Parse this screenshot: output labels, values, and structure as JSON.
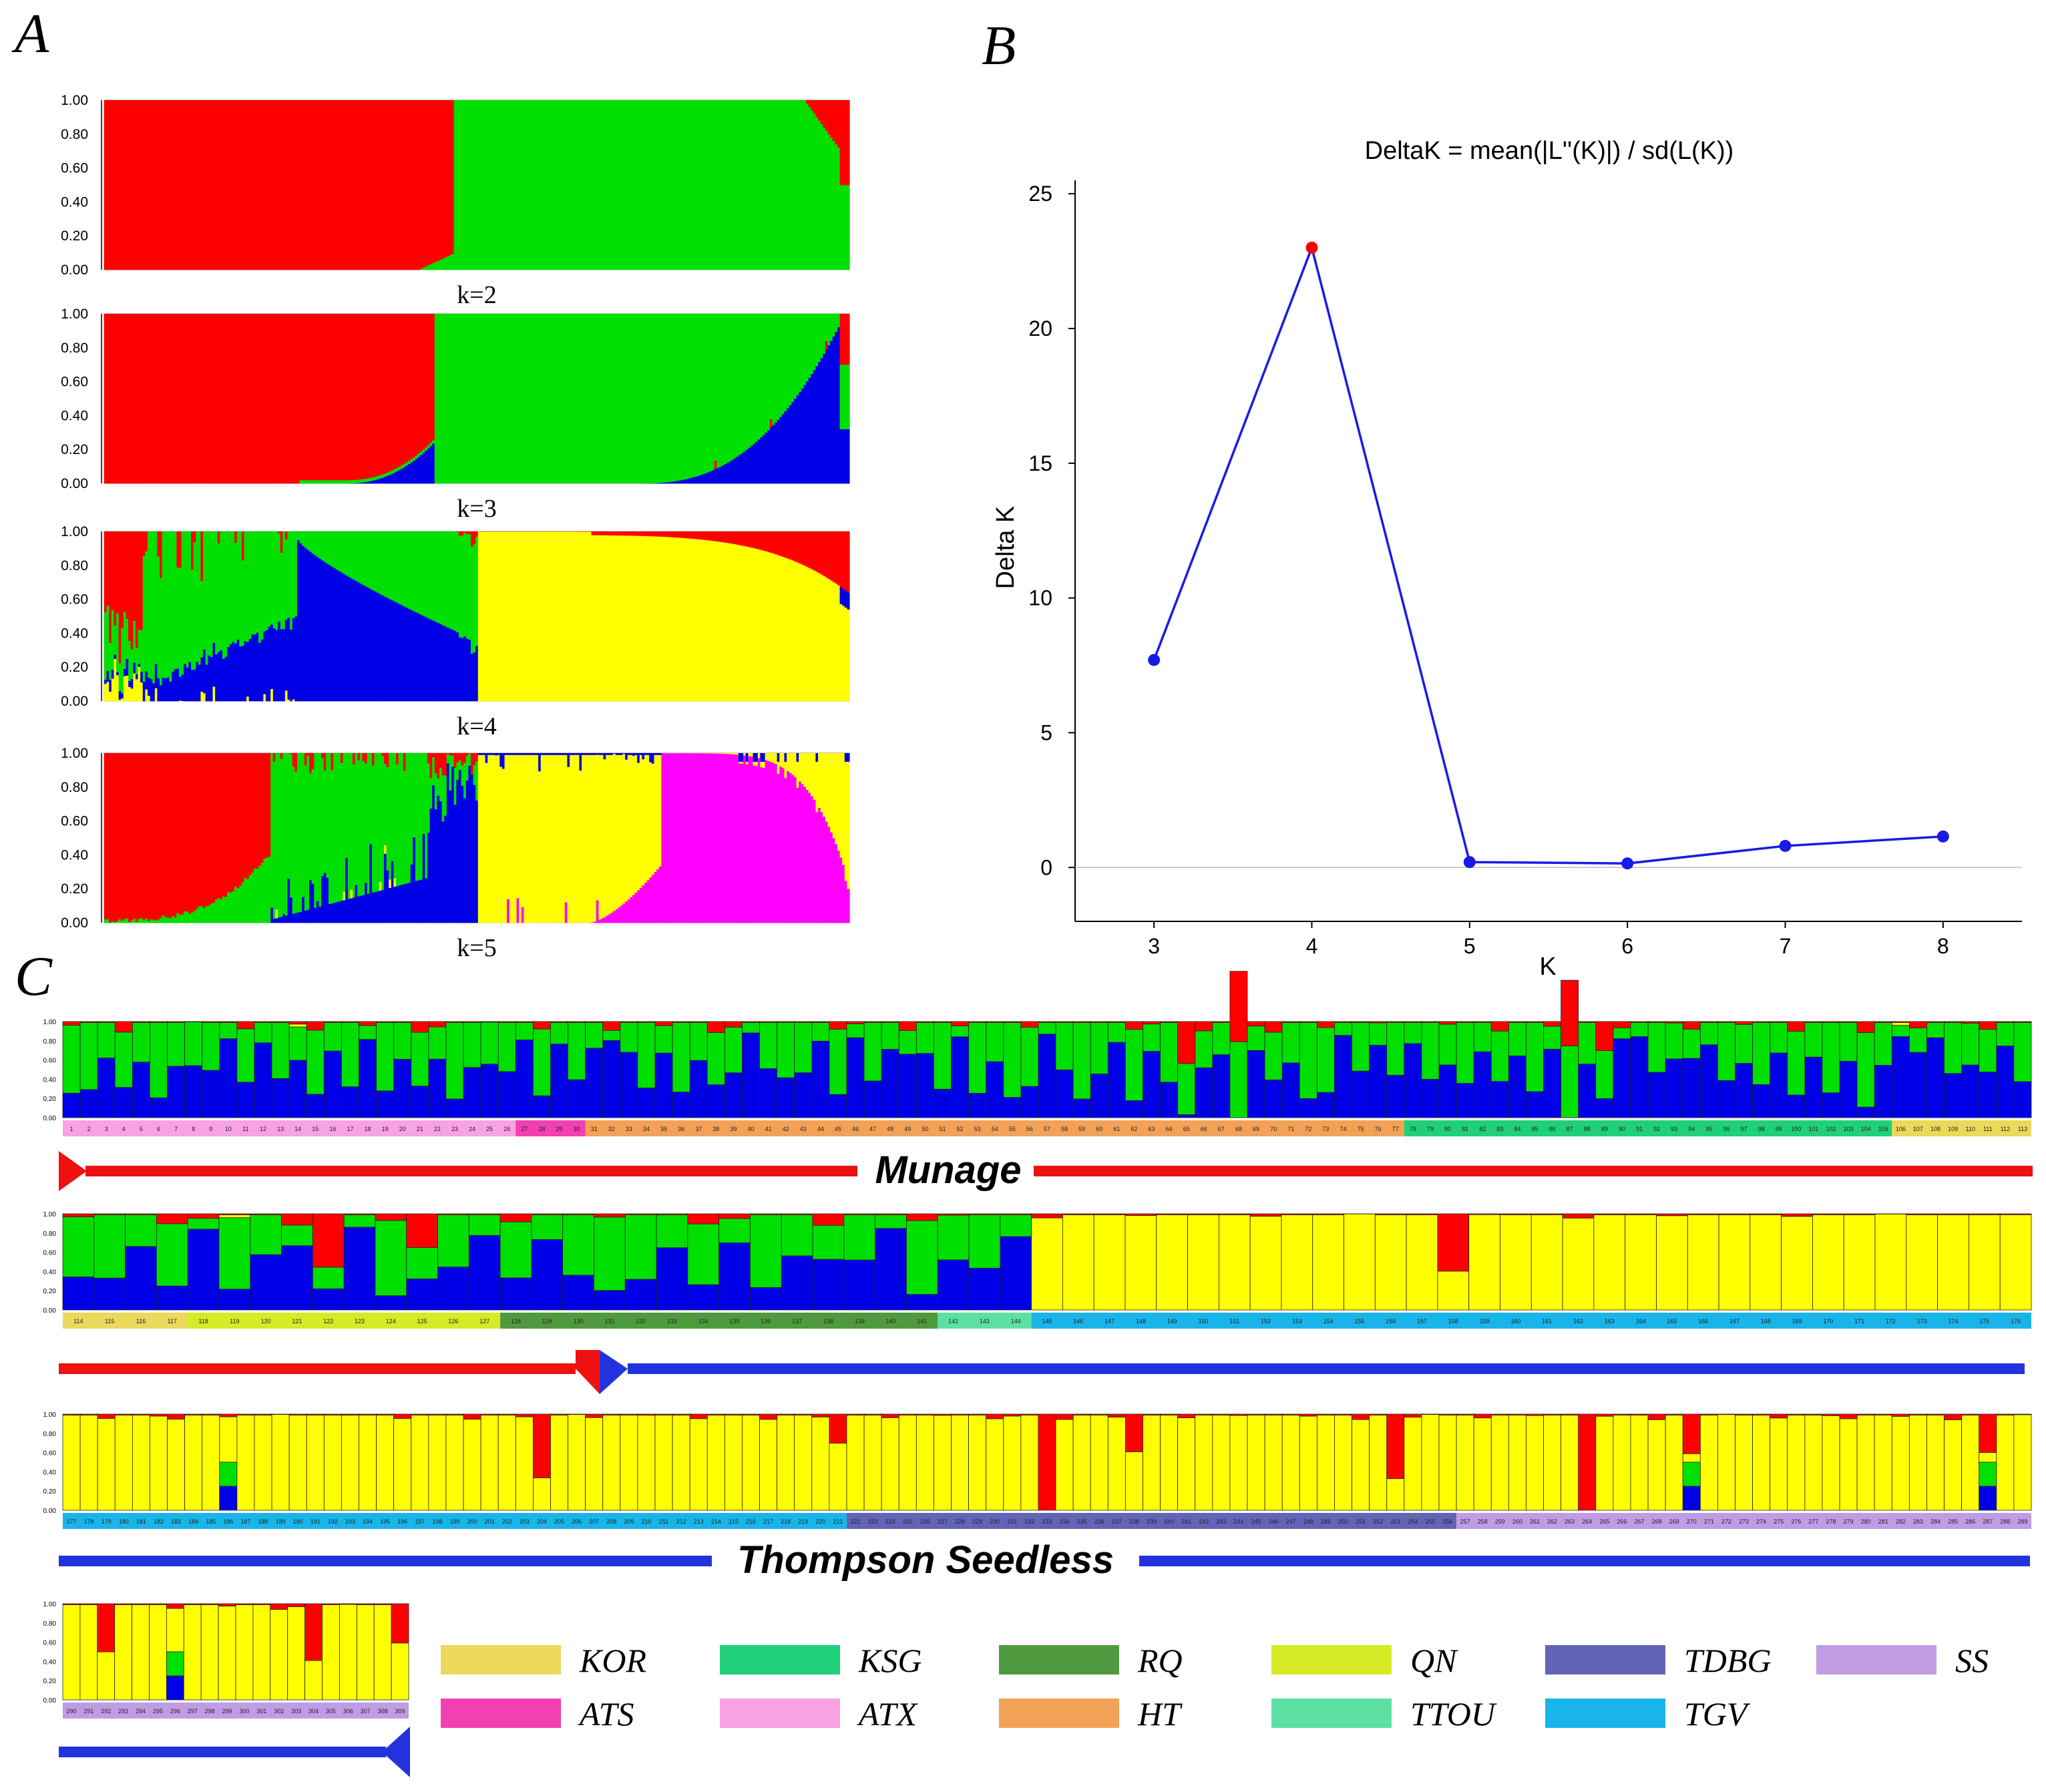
{
  "colors": {
    "red": "#ff0000",
    "green": "#00e000",
    "blue": "#0000e6",
    "yellow": "#ffff00",
    "magenta": "#ff00ff",
    "line": "#1a1ae6",
    "arrow_red": "#ee1111",
    "arrow_blue": "#2233dd"
  },
  "panel_labels": {
    "a": "A",
    "b": "B",
    "c": "C"
  },
  "chart_data": [
    {
      "id": "A",
      "type": "stacked-bar",
      "title": "",
      "y_ticks": [
        "0.00",
        "0.20",
        "0.40",
        "0.60",
        "0.80",
        "1.00"
      ],
      "ylim": [
        0,
        1
      ],
      "n_samples": 309,
      "plots": [
        {
          "k_label": "k=2",
          "segments": [
            {
              "cluster": "red",
              "from": 0,
              "to": 145
            },
            {
              "cluster": "green",
              "from": 145,
              "to": 305
            },
            {
              "cluster": "red",
              "from": 305,
              "to": 309
            }
          ]
        },
        {
          "k_label": "k=3",
          "segments": [
            {
              "cluster": "red",
              "from": 0,
              "to": 137
            },
            {
              "cluster": "green",
              "from": 137,
              "to": 285
            },
            {
              "cluster": "blue",
              "from": 285,
              "to": 305
            },
            {
              "cluster": "red",
              "from": 305,
              "to": 309
            }
          ]
        },
        {
          "k_label": "k=4",
          "segments": [
            {
              "cluster": "red",
              "from": 0,
              "to": 16
            },
            {
              "cluster": "green",
              "from": 16,
              "to": 80
            },
            {
              "cluster": "blue",
              "from": 80,
              "to": 155
            },
            {
              "cluster": "yellow",
              "from": 155,
              "to": 309
            }
          ]
        },
        {
          "k_label": "k=5",
          "segments": [
            {
              "cluster": "red",
              "from": 0,
              "to": 69
            },
            {
              "cluster": "green",
              "from": 69,
              "to": 135
            },
            {
              "cluster": "blue",
              "from": 135,
              "to": 155
            },
            {
              "cluster": "yellow",
              "from": 155,
              "to": 231
            },
            {
              "cluster": "magenta",
              "from": 231,
              "to": 309
            }
          ]
        }
      ]
    },
    {
      "id": "B",
      "type": "line",
      "title": "DeltaK = mean(|L''(K)|) / sd(L(K))",
      "xlabel": "K",
      "ylabel": "Delta K",
      "x": [
        3,
        4,
        5,
        6,
        7,
        8
      ],
      "y": [
        7.7,
        23.0,
        0.2,
        0.15,
        0.8,
        1.15
      ],
      "highlight_x": 4,
      "x_ticks": [
        "3",
        "4",
        "5",
        "6",
        "7",
        "8"
      ],
      "y_ticks": [
        "0",
        "5",
        "10",
        "15",
        "20",
        "25"
      ],
      "xlim": [
        2.5,
        8.5
      ],
      "ylim": [
        -2,
        25.5
      ]
    },
    {
      "id": "C",
      "type": "stacked-bar",
      "k": 4,
      "y_ticks": [
        "0.00",
        "0.20",
        "0.40",
        "0.60",
        "0.80",
        "1.00"
      ],
      "rows": [
        {
          "from": 1,
          "to": 113,
          "segments": [
            {
              "cluster": "blue",
              "from": 1,
              "to": 113
            }
          ],
          "groups": [
            {
              "name": "ATX",
              "from": 1,
              "to": 26
            },
            {
              "name": "ATS",
              "from": 27,
              "to": 30
            },
            {
              "name": "HT",
              "from": 31,
              "to": 77
            },
            {
              "name": "KSG",
              "from": 78,
              "to": 105
            },
            {
              "name": "KOR",
              "from": 106,
              "to": 113
            }
          ]
        },
        {
          "from": 114,
          "to": 176,
          "segments": [
            {
              "cluster": "blue",
              "from": 114,
              "to": 144
            },
            {
              "cluster": "yellow",
              "from": 145,
              "to": 176
            }
          ],
          "groups": [
            {
              "name": "KOR",
              "from": 114,
              "to": 117
            },
            {
              "name": "QN",
              "from": 118,
              "to": 127
            },
            {
              "name": "RQ",
              "from": 128,
              "to": 141
            },
            {
              "name": "TTOU",
              "from": 142,
              "to": 144
            },
            {
              "name": "TGV",
              "from": 145,
              "to": 176
            }
          ]
        },
        {
          "from": 177,
          "to": 289,
          "segments": [
            {
              "cluster": "yellow",
              "from": 177,
              "to": 289
            }
          ],
          "groups": [
            {
              "name": "TGV",
              "from": 177,
              "to": 221
            },
            {
              "name": "TDBG",
              "from": 222,
              "to": 256
            },
            {
              "name": "SS",
              "from": 257,
              "to": 289
            }
          ]
        },
        {
          "from": 290,
          "to": 309,
          "segments": [
            {
              "cluster": "yellow",
              "from": 290,
              "to": 309
            }
          ],
          "groups": [
            {
              "name": "SS",
              "from": 290,
              "to": 309
            }
          ]
        }
      ],
      "cultivars": [
        "Munage",
        "Thompson Seedless"
      ]
    }
  ],
  "legend": [
    {
      "name": "KOR",
      "color": "#ecd85a"
    },
    {
      "name": "KSG",
      "color": "#1fcf7a"
    },
    {
      "name": "RQ",
      "color": "#4f9a3e"
    },
    {
      "name": "QN",
      "color": "#d6ea26"
    },
    {
      "name": "TDBG",
      "color": "#6264b6"
    },
    {
      "name": "SS",
      "color": "#bf9ce4"
    },
    {
      "name": "ATS",
      "color": "#f23fb2"
    },
    {
      "name": "ATX",
      "color": "#f7a2e3"
    },
    {
      "name": "HT",
      "color": "#f2a256"
    },
    {
      "name": "TTOU",
      "color": "#5ce0a4"
    },
    {
      "name": "TGV",
      "color": "#19b5ea"
    }
  ]
}
